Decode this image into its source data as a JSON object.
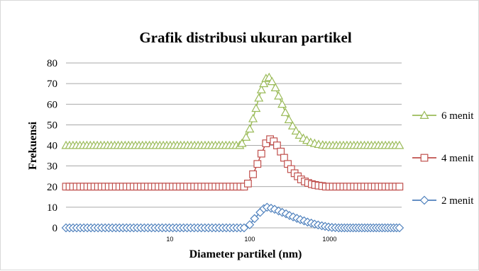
{
  "chart_data": {
    "type": "line",
    "title": "Grafik distribusi ukuran partikel",
    "xlabel": "Diameter partikel (nm)",
    "ylabel": "Frekuensi",
    "x_scale": "log",
    "xlim": [
      0.5,
      8000
    ],
    "ylim": [
      0,
      80
    ],
    "y_ticks": [
      "0",
      "10",
      "20",
      "30",
      "40",
      "50",
      "60",
      "70",
      "80"
    ],
    "x_tick_values": [
      10,
      100,
      1000
    ],
    "x_ticks": [
      "10",
      "100",
      "1000"
    ],
    "grid": "horizontal",
    "legend_position": "right",
    "series": [
      {
        "name": "6 menit",
        "color": "#9bbb59",
        "marker": "triangle",
        "baseline_x_range": [
          0.5,
          75
        ],
        "baseline_y": 40,
        "peak": [
          [
            80,
            41
          ],
          [
            90,
            44
          ],
          [
            100,
            48
          ],
          [
            110,
            53
          ],
          [
            120,
            58
          ],
          [
            130,
            63
          ],
          [
            140,
            67
          ],
          [
            150,
            70
          ],
          [
            160,
            72.5
          ],
          [
            175,
            73
          ],
          [
            190,
            71
          ],
          [
            210,
            68
          ],
          [
            230,
            64
          ],
          [
            255,
            60
          ],
          [
            280,
            56
          ],
          [
            310,
            52.5
          ],
          [
            345,
            49.5
          ],
          [
            380,
            47
          ],
          [
            420,
            45
          ],
          [
            470,
            43.5
          ],
          [
            520,
            42.5
          ],
          [
            580,
            41.5
          ],
          [
            650,
            41
          ],
          [
            730,
            40.5
          ],
          [
            820,
            40.2
          ]
        ],
        "tail_x_range": [
          900,
          7500
        ],
        "tail_y": 40
      },
      {
        "name": "4 menit",
        "color": "#c0504d",
        "marker": "square",
        "baseline_x_range": [
          0.5,
          85
        ],
        "baseline_y": 20,
        "peak": [
          [
            95,
            21.5
          ],
          [
            110,
            26
          ],
          [
            125,
            31
          ],
          [
            140,
            36
          ],
          [
            160,
            41
          ],
          [
            180,
            43
          ],
          [
            200,
            42
          ],
          [
            220,
            40
          ],
          [
            245,
            37
          ],
          [
            270,
            34
          ],
          [
            300,
            31
          ],
          [
            330,
            28.5
          ],
          [
            365,
            26.5
          ],
          [
            400,
            25
          ],
          [
            440,
            23.5
          ],
          [
            490,
            22.5
          ],
          [
            540,
            21.8
          ],
          [
            600,
            21.2
          ],
          [
            660,
            20.8
          ],
          [
            730,
            20.5
          ],
          [
            810,
            20.3
          ]
        ],
        "tail_x_range": [
          900,
          7500
        ],
        "tail_y": 20
      },
      {
        "name": "2 menit",
        "color": "#4f81bd",
        "marker": "diamond",
        "baseline_x_range": [
          0.5,
          85
        ],
        "baseline_y": 0,
        "peak": [
          [
            100,
            1.5
          ],
          [
            115,
            4.5
          ],
          [
            135,
            7.5
          ],
          [
            150,
            9.3
          ],
          [
            165,
            10
          ],
          [
            185,
            9.5
          ],
          [
            205,
            9
          ],
          [
            230,
            8.2
          ],
          [
            255,
            7.5
          ],
          [
            285,
            6.8
          ],
          [
            315,
            6
          ],
          [
            350,
            5.3
          ],
          [
            390,
            4.6
          ],
          [
            430,
            4
          ],
          [
            480,
            3.4
          ],
          [
            530,
            2.8
          ],
          [
            590,
            2.3
          ],
          [
            650,
            1.8
          ],
          [
            720,
            1.4
          ],
          [
            800,
            1.0
          ],
          [
            880,
            0.7
          ],
          [
            970,
            0.4
          ],
          [
            1070,
            0.2
          ],
          [
            1180,
            0.1
          ]
        ],
        "tail_x_range": [
          1300,
          7500
        ],
        "tail_y": 0
      }
    ]
  }
}
